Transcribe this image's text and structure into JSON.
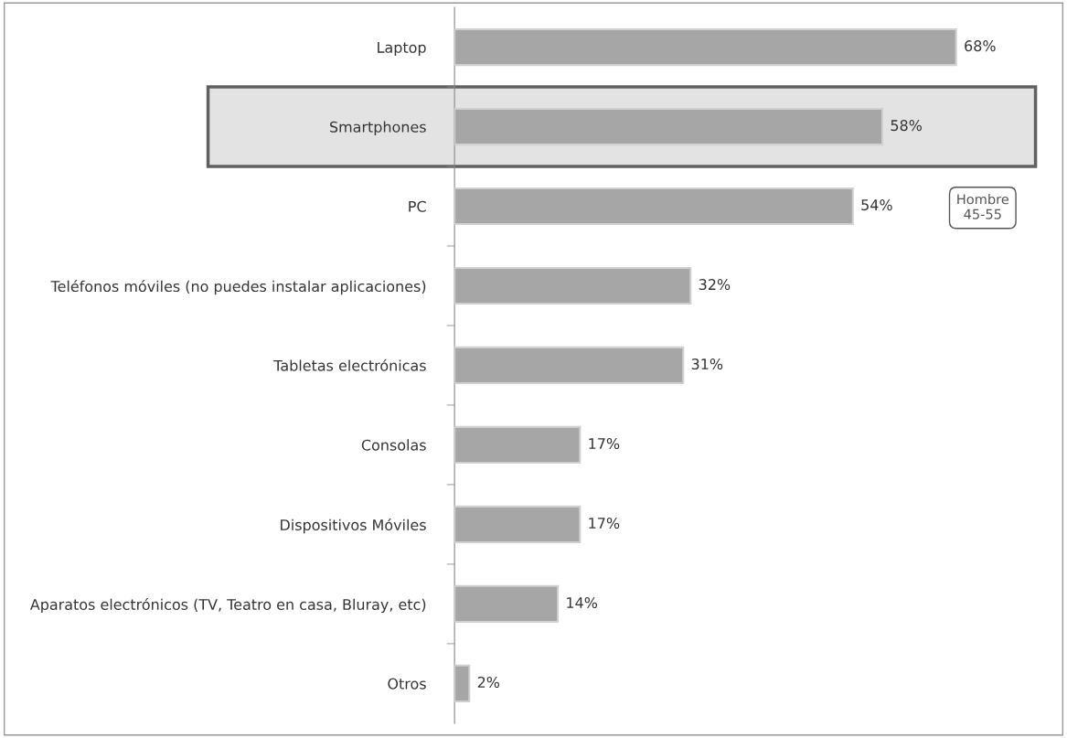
{
  "chart_data": {
    "type": "bar",
    "orientation": "horizontal",
    "categories": [
      "Laptop",
      "Smartphones",
      "PC",
      "Teléfonos móviles (no puedes instalar aplicaciones)",
      "Tabletas electrónicas",
      "Consolas",
      "Dispositivos Móviles",
      "Aparatos electrónicos (TV, Teatro en casa, Bluray, etc)",
      "Otros"
    ],
    "values": [
      68,
      58,
      54,
      32,
      31,
      17,
      17,
      14,
      2
    ],
    "value_labels": [
      "68%",
      "58%",
      "54%",
      "32%",
      "31%",
      "17%",
      "17%",
      "14%",
      "2%"
    ],
    "color": "#a6a6a6",
    "bands": [
      {
        "axis": "y",
        "from": "Smartphones",
        "to": "Smartphones",
        "color": "#e3e3e3"
      }
    ],
    "annotations": [
      "Hombre\n45-55"
    ],
    "grid": false
  }
}
